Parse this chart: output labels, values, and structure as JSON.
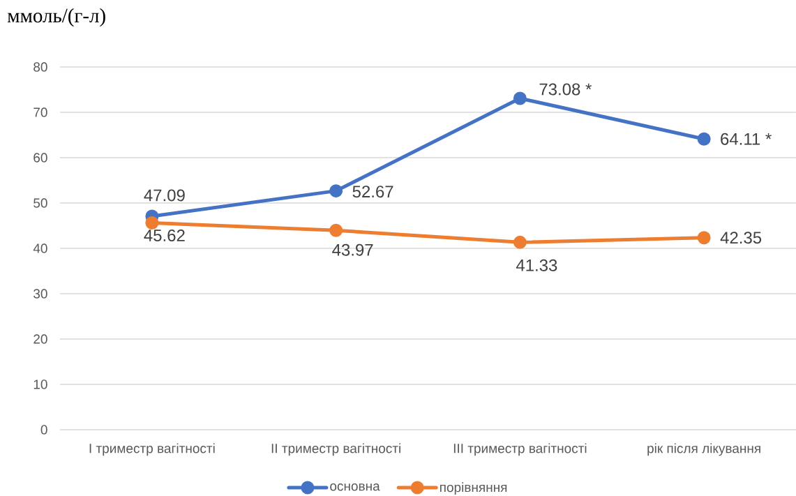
{
  "chart_data": {
    "type": "line",
    "ylabel": "ммоль/(г-л)",
    "categories": [
      "I триместр вагітності",
      "II триместр вагітності",
      "III триместр вагітності",
      "рік після лікування"
    ],
    "series": [
      {
        "name": "основна",
        "color": "#4472c4",
        "values": [
          47.09,
          52.67,
          73.08,
          64.11
        ],
        "value_labels": [
          "47.09",
          "52.67",
          "73.08 *",
          "64.11 *"
        ]
      },
      {
        "name": "порівняння",
        "color": "#ed7d31",
        "values": [
          45.62,
          43.97,
          41.33,
          42.35
        ],
        "value_labels": [
          "45.62",
          "43.97",
          "41.33",
          "42.35"
        ]
      }
    ],
    "ylim": [
      0,
      80
    ],
    "yticks": [
      0,
      10,
      20,
      30,
      40,
      50,
      60,
      70,
      80
    ],
    "grid": "y",
    "legend": "bottom",
    "marker": "circle",
    "line_style": "solid"
  }
}
